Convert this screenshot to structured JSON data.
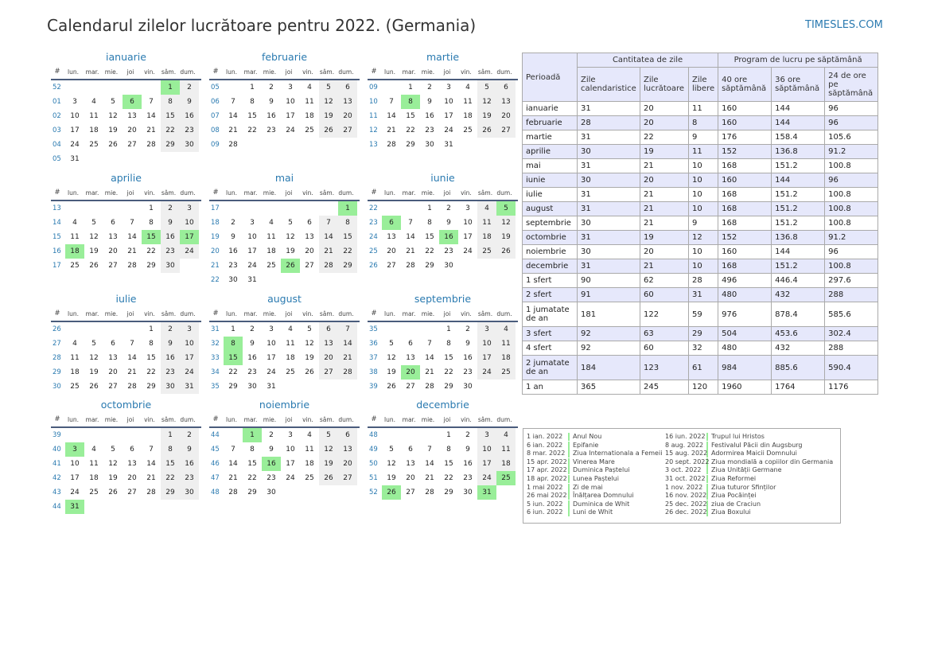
{
  "header": {
    "title": "Calendarul zilelor lucrătoare pentru 2022. (Germania)",
    "brand": "TIMESLES.COM"
  },
  "calendar": {
    "weekday_headers": [
      "#",
      "lun.",
      "mar.",
      "mie.",
      "joi",
      "vin.",
      "sâm.",
      "dum."
    ],
    "months": [
      {
        "name": "ianuarie",
        "offset": 5,
        "days": 31,
        "weeks": [
          "52",
          "01",
          "02",
          "03",
          "04",
          "05"
        ],
        "holidays": [
          1,
          6
        ]
      },
      {
        "name": "februarie",
        "offset": 1,
        "days": 28,
        "weeks": [
          "05",
          "06",
          "07",
          "08",
          "09"
        ],
        "holidays": []
      },
      {
        "name": "martie",
        "offset": 1,
        "days": 31,
        "weeks": [
          "09",
          "10",
          "11",
          "12",
          "13"
        ],
        "holidays": [
          8
        ]
      },
      {
        "name": "aprilie",
        "offset": 4,
        "days": 30,
        "weeks": [
          "13",
          "14",
          "15",
          "16",
          "17"
        ],
        "holidays": [
          15,
          17,
          18
        ]
      },
      {
        "name": "mai",
        "offset": 6,
        "days": 31,
        "weeks": [
          "17",
          "18",
          "19",
          "20",
          "21",
          "22"
        ],
        "holidays": [
          1,
          26
        ]
      },
      {
        "name": "iunie",
        "offset": 2,
        "days": 30,
        "weeks": [
          "22",
          "23",
          "24",
          "25",
          "26"
        ],
        "holidays": [
          5,
          6,
          16
        ]
      },
      {
        "name": "iulie",
        "offset": 4,
        "days": 31,
        "weeks": [
          "26",
          "27",
          "28",
          "29",
          "30"
        ],
        "holidays": []
      },
      {
        "name": "august",
        "offset": 0,
        "days": 31,
        "weeks": [
          "31",
          "32",
          "33",
          "34",
          "35"
        ],
        "holidays": [
          8,
          15
        ]
      },
      {
        "name": "septembrie",
        "offset": 3,
        "days": 30,
        "weeks": [
          "35",
          "36",
          "37",
          "38",
          "39"
        ],
        "holidays": [
          20
        ]
      },
      {
        "name": "octombrie",
        "offset": 5,
        "days": 31,
        "weeks": [
          "39",
          "40",
          "41",
          "42",
          "43",
          "44"
        ],
        "holidays": [
          3,
          31
        ]
      },
      {
        "name": "noiembrie",
        "offset": 1,
        "days": 30,
        "weeks": [
          "44",
          "45",
          "46",
          "47",
          "48"
        ],
        "holidays": [
          1,
          16
        ]
      },
      {
        "name": "decembrie",
        "offset": 3,
        "days": 31,
        "weeks": [
          "48",
          "49",
          "50",
          "51",
          "52"
        ],
        "holidays": [
          25,
          26,
          31
        ]
      }
    ]
  },
  "summary": {
    "period_header": "Perioadă",
    "group1_header": "Cantitatea de zile",
    "group2_header": "Program de lucru pe săptămână",
    "columns": [
      "Zile calendaristice",
      "Zile lucrătoare",
      "Zile libere",
      "40 ore săptămână",
      "36 ore săptămână",
      "24 de ore pe săptămână"
    ],
    "rows": [
      {
        "period": "ianuarie",
        "values": [
          "31",
          "20",
          "11",
          "160",
          "144",
          "96"
        ]
      },
      {
        "period": "februarie",
        "values": [
          "28",
          "20",
          "8",
          "160",
          "144",
          "96"
        ]
      },
      {
        "period": "martie",
        "values": [
          "31",
          "22",
          "9",
          "176",
          "158.4",
          "105.6"
        ]
      },
      {
        "period": "aprilie",
        "values": [
          "30",
          "19",
          "11",
          "152",
          "136.8",
          "91.2"
        ]
      },
      {
        "period": "mai",
        "values": [
          "31",
          "21",
          "10",
          "168",
          "151.2",
          "100.8"
        ]
      },
      {
        "period": "iunie",
        "values": [
          "30",
          "20",
          "10",
          "160",
          "144",
          "96"
        ]
      },
      {
        "period": "iulie",
        "values": [
          "31",
          "21",
          "10",
          "168",
          "151.2",
          "100.8"
        ]
      },
      {
        "period": "august",
        "values": [
          "31",
          "21",
          "10",
          "168",
          "151.2",
          "100.8"
        ]
      },
      {
        "period": "septembrie",
        "values": [
          "30",
          "21",
          "9",
          "168",
          "151.2",
          "100.8"
        ]
      },
      {
        "period": "octombrie",
        "values": [
          "31",
          "19",
          "12",
          "152",
          "136.8",
          "91.2"
        ]
      },
      {
        "period": "noiembrie",
        "values": [
          "30",
          "20",
          "10",
          "160",
          "144",
          "96"
        ]
      },
      {
        "period": "decembrie",
        "values": [
          "31",
          "21",
          "10",
          "168",
          "151.2",
          "100.8"
        ]
      },
      {
        "period": "1 sfert",
        "values": [
          "90",
          "62",
          "28",
          "496",
          "446.4",
          "297.6"
        ]
      },
      {
        "period": "2 sfert",
        "values": [
          "91",
          "60",
          "31",
          "480",
          "432",
          "288"
        ]
      },
      {
        "period": "1 jumatate de an",
        "values": [
          "181",
          "122",
          "59",
          "976",
          "878.4",
          "585.6"
        ]
      },
      {
        "period": "3 sfert",
        "values": [
          "92",
          "63",
          "29",
          "504",
          "453.6",
          "302.4"
        ]
      },
      {
        "period": "4 sfert",
        "values": [
          "92",
          "60",
          "32",
          "480",
          "432",
          "288"
        ]
      },
      {
        "period": "2 jumatate de an",
        "values": [
          "184",
          "123",
          "61",
          "984",
          "885.6",
          "590.4"
        ]
      },
      {
        "period": "1 an",
        "values": [
          "365",
          "245",
          "120",
          "1960",
          "1764",
          "1176"
        ]
      }
    ]
  },
  "holidays": [
    {
      "date": "1 ian. 2022",
      "name": "Anul Nou"
    },
    {
      "date": "6 ian. 2022",
      "name": "Epifanie"
    },
    {
      "date": "8 mar. 2022",
      "name": "Ziua Internationala a Femeii"
    },
    {
      "date": "15 apr. 2022",
      "name": "Vinerea Mare"
    },
    {
      "date": "17 apr. 2022",
      "name": "Duminica Paștelui"
    },
    {
      "date": "18 apr. 2022",
      "name": "Lunea Paștelui"
    },
    {
      "date": "1 mai 2022",
      "name": "Zi de mai"
    },
    {
      "date": "26 mai 2022",
      "name": "Înălțarea Domnului"
    },
    {
      "date": "5 iun. 2022",
      "name": "Duminica de Whit"
    },
    {
      "date": "6 iun. 2022",
      "name": "Luni de Whit"
    },
    {
      "date": "16 iun. 2022",
      "name": "Trupul lui Hristos"
    },
    {
      "date": "8 aug. 2022",
      "name": "Festivalul Păcii din Augsburg"
    },
    {
      "date": "15 aug. 2022",
      "name": "Adormirea Maicii Domnului"
    },
    {
      "date": "20 sept. 2022",
      "name": "Ziua mondială a copiilor din Germania"
    },
    {
      "date": "3 oct. 2022",
      "name": "Ziua Unității Germane"
    },
    {
      "date": "31 oct. 2022",
      "name": "Ziua Reformei"
    },
    {
      "date": "1 nov. 2022",
      "name": "Ziua tuturor Sfinților"
    },
    {
      "date": "16 nov. 2022",
      "name": "Ziua Pocăinței"
    },
    {
      "date": "25 dec. 2022",
      "name": "ziua de Craciun"
    },
    {
      "date": "26 dec. 2022",
      "name": "Ziua Boxului"
    }
  ],
  "colors": {
    "accent": "#2a7ab0",
    "holiday": "#99ee99",
    "weekend": "#efefef",
    "header_bg": "#e6e8fb"
  }
}
